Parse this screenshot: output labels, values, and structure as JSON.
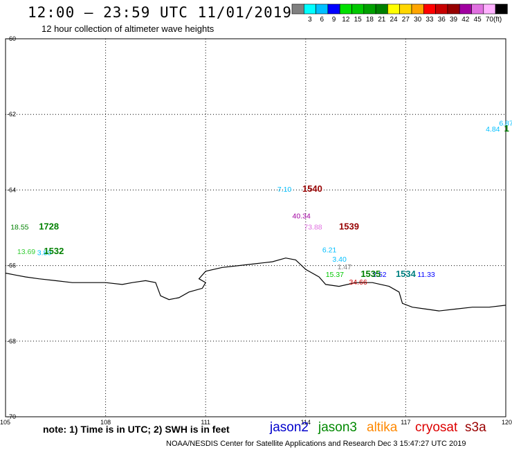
{
  "header": {
    "title": "12:00 – 23:59 UTC 11/01/2019",
    "subtitle": "12 hour collection of altimeter wave heights"
  },
  "legend": {
    "unit": "(ft)",
    "swatches": [
      {
        "color": "#808080",
        "label": ""
      },
      {
        "color": "#00ffff",
        "label": "3"
      },
      {
        "color": "#00bfff",
        "label": "6"
      },
      {
        "color": "#0000ff",
        "label": "9"
      },
      {
        "color": "#00e000",
        "label": "12"
      },
      {
        "color": "#00c800",
        "label": "15"
      },
      {
        "color": "#00a000",
        "label": "18"
      },
      {
        "color": "#008000",
        "label": "21"
      },
      {
        "color": "#ffff00",
        "label": "24"
      },
      {
        "color": "#ffd700",
        "label": "27"
      },
      {
        "color": "#ffa500",
        "label": "30"
      },
      {
        "color": "#ff0000",
        "label": "33"
      },
      {
        "color": "#c80000",
        "label": "36"
      },
      {
        "color": "#960000",
        "label": "39"
      },
      {
        "color": "#a000a0",
        "label": "42"
      },
      {
        "color": "#e070e0",
        "label": "45"
      },
      {
        "color": "#ffb0ff",
        "label": "70"
      },
      {
        "color": "#000000",
        "label": ""
      }
    ]
  },
  "map": {
    "lon_range": [
      105,
      120
    ],
    "lat_range": [
      -70,
      -60
    ],
    "lon_ticks": [
      {
        "value": 105,
        "label": "105"
      },
      {
        "value": 108,
        "label": "108"
      },
      {
        "value": 111,
        "label": "111"
      },
      {
        "value": 114,
        "label": "114"
      },
      {
        "value": 117,
        "label": "117"
      },
      {
        "value": 120,
        "label": "120"
      }
    ],
    "lat_ticks": [
      {
        "value": -60,
        "label": "-60"
      },
      {
        "value": -62,
        "label": "-62"
      },
      {
        "value": -64,
        "label": "-64"
      },
      {
        "value": -66,
        "label": "-66"
      },
      {
        "value": -68,
        "label": "-68"
      },
      {
        "value": -70,
        "label": "-70"
      }
    ],
    "coastline": [
      [
        105.0,
        -66.2
      ],
      [
        105.3,
        -66.25
      ],
      [
        105.6,
        -66.3
      ],
      [
        106.0,
        -66.35
      ],
      [
        106.5,
        -66.4
      ],
      [
        107.0,
        -66.45
      ],
      [
        107.5,
        -66.45
      ],
      [
        108.0,
        -66.45
      ],
      [
        108.5,
        -66.5
      ],
      [
        108.8,
        -66.45
      ],
      [
        109.2,
        -66.4
      ],
      [
        109.5,
        -66.45
      ],
      [
        109.65,
        -66.8
      ],
      [
        109.9,
        -66.9
      ],
      [
        110.2,
        -66.85
      ],
      [
        110.5,
        -66.7
      ],
      [
        110.9,
        -66.6
      ],
      [
        111.0,
        -66.45
      ],
      [
        110.8,
        -66.35
      ],
      [
        111.0,
        -66.15
      ],
      [
        111.5,
        -66.05
      ],
      [
        112.0,
        -66.0
      ],
      [
        112.5,
        -65.95
      ],
      [
        113.0,
        -65.9
      ],
      [
        113.4,
        -65.8
      ],
      [
        113.7,
        -65.85
      ],
      [
        114.0,
        -66.1
      ],
      [
        114.4,
        -66.3
      ],
      [
        114.6,
        -66.5
      ],
      [
        115.0,
        -66.55
      ],
      [
        115.5,
        -66.45
      ],
      [
        116.0,
        -66.45
      ],
      [
        116.5,
        -66.55
      ],
      [
        116.8,
        -66.7
      ],
      [
        116.9,
        -67.0
      ],
      [
        117.2,
        -67.1
      ],
      [
        117.6,
        -67.15
      ],
      [
        118.0,
        -67.2
      ],
      [
        118.5,
        -67.15
      ],
      [
        119.0,
        -67.1
      ],
      [
        119.5,
        -67.1
      ],
      [
        120.0,
        -67.05
      ]
    ],
    "observations": [
      {
        "text": "18.55",
        "lon": 105.15,
        "lat": -65.05,
        "color": "#008000"
      },
      {
        "text": "13.69",
        "lon": 105.35,
        "lat": -65.7,
        "color": "#33cc33"
      },
      {
        "text": "3.80",
        "lon": 105.95,
        "lat": -65.72,
        "color": "#00bfff"
      },
      {
        "text": "7.10",
        "lon": 113.15,
        "lat": -64.05,
        "color": "#00bfff"
      },
      {
        "text": "40.34",
        "lon": 113.6,
        "lat": -64.75,
        "color": "#a000a0"
      },
      {
        "text": "73.88",
        "lon": 113.95,
        "lat": -65.05,
        "color": "#e070e0"
      },
      {
        "text": "6.21",
        "lon": 114.5,
        "lat": -65.65,
        "color": "#00bfff"
      },
      {
        "text": "3.40",
        "lon": 114.8,
        "lat": -65.9,
        "color": "#00bfff"
      },
      {
        "text": "1.47",
        "lon": 114.95,
        "lat": -66.1,
        "color": "#808080"
      },
      {
        "text": "15.37",
        "lon": 114.6,
        "lat": -66.3,
        "color": "#00c800"
      },
      {
        "text": "2.52",
        "lon": 116.0,
        "lat": -66.3,
        "color": "#0000ff"
      },
      {
        "text": "34.66",
        "lon": 115.3,
        "lat": -66.5,
        "color": "#c80000"
      },
      {
        "text": "11.33",
        "lon": 117.35,
        "lat": -66.3,
        "color": "#0000ff"
      },
      {
        "text": "4.84",
        "lon": 119.4,
        "lat": -62.45,
        "color": "#00bfff"
      },
      {
        "text": "6.87",
        "lon": 119.8,
        "lat": -62.3,
        "color": "#00bfff"
      }
    ],
    "tracks": [
      {
        "text": "1728",
        "lon": 106.0,
        "lat": -65.05,
        "color": "#008000"
      },
      {
        "text": "1532",
        "lon": 106.15,
        "lat": -65.7,
        "color": "#008000"
      },
      {
        "text": "1540",
        "lon": 113.9,
        "lat": -64.05,
        "color": "#960000"
      },
      {
        "text": "1539",
        "lon": 115.0,
        "lat": -65.05,
        "color": "#960000"
      },
      {
        "text": "1535",
        "lon": 115.65,
        "lat": -66.3,
        "color": "#008000"
      },
      {
        "text": "1534",
        "lon": 116.7,
        "lat": -66.3,
        "color": "#008080"
      },
      {
        "text": "1",
        "lon": 119.95,
        "lat": -62.45,
        "color": "#008000"
      }
    ]
  },
  "note": "note:  1) Time is in UTC;  2) SWH is in feet",
  "missions": [
    {
      "name": "jason2",
      "color": "#0000cc"
    },
    {
      "name": "jason3",
      "color": "#008800"
    },
    {
      "name": "altika",
      "color": "#ff8800"
    },
    {
      "name": "cryosat",
      "color": "#dd0000"
    },
    {
      "name": "s3a",
      "color": "#990000"
    }
  ],
  "footer": "NOAA/NESDIS Center for Satellite Applications and Research    Dec  3 15:47:27 UTC 2019"
}
